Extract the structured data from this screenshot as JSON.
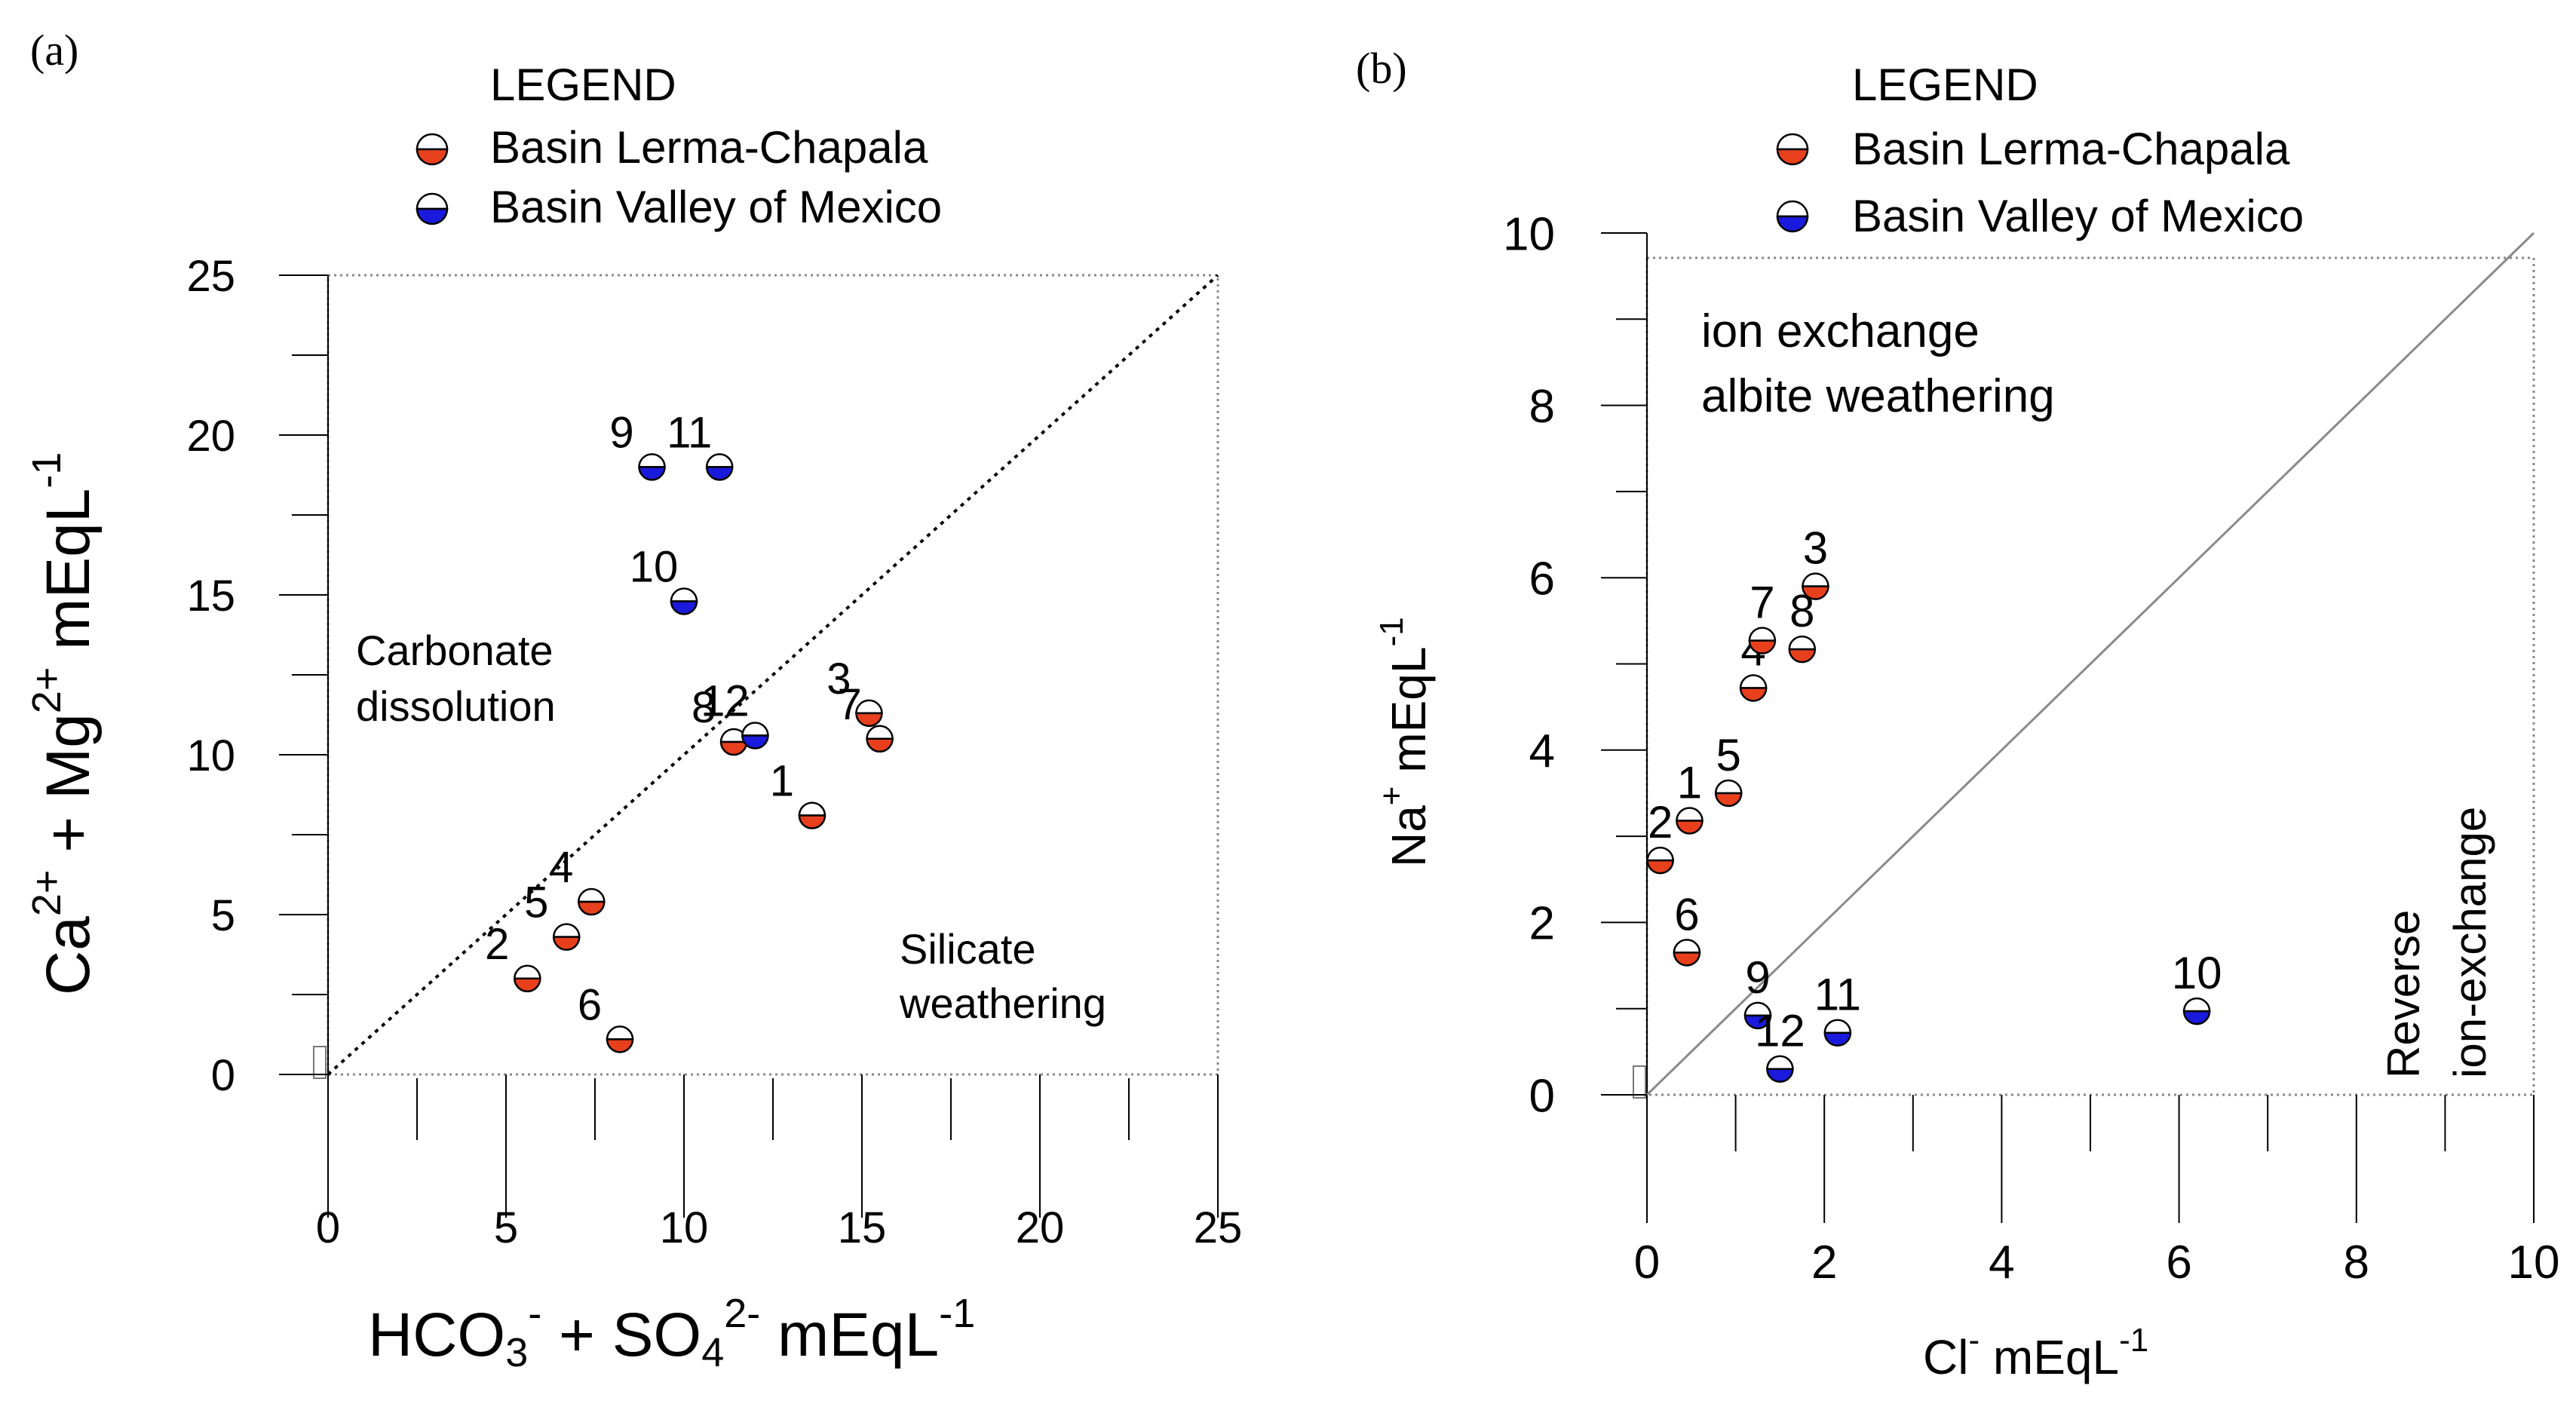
{
  "chart_data": [
    {
      "type": "scatter",
      "panel_label": "(a)",
      "legend": {
        "title": "LEGEND",
        "entries": [
          "Basin Lerma-Chapala",
          "Basin Valley of Mexico"
        ]
      },
      "series_colors": {
        "lerma": "#e8401c",
        "mexico": "#1a1adc"
      },
      "xlim": [
        0,
        25
      ],
      "ylim": [
        0,
        25
      ],
      "x_ticks": [
        0,
        5,
        10,
        15,
        20,
        25
      ],
      "y_ticks": [
        0,
        5,
        10,
        15,
        20,
        25
      ],
      "x_tick_labels": [
        "0",
        "5",
        "10",
        "15",
        "20",
        "25"
      ],
      "y_tick_labels": [
        "0",
        "5",
        "10",
        "15",
        "20",
        "25"
      ],
      "xlabel": {
        "p1": "HCO",
        "p2": "3",
        "p3": "-",
        "p4": " + SO",
        "p5": "4",
        "p6": "2-",
        "p7": "  mEqL",
        "p8": "-1"
      },
      "ylabel": {
        "p1": "Ca",
        "p2": "2+",
        "p3": " + Mg",
        "p4": "2+",
        "p5": "  mEqL",
        "p6": "-1"
      },
      "reference_line": "1:1 dotted",
      "annotations": [
        {
          "lines": [
            "Carbonate",
            "dissolution"
          ],
          "where": "upper-left"
        },
        {
          "lines": [
            "Silicate",
            "weathering"
          ],
          "where": "lower-right"
        }
      ],
      "points": [
        {
          "label": "1",
          "series": "lerma",
          "x": 13.6,
          "y": 8.1
        },
        {
          "label": "2",
          "series": "lerma",
          "x": 5.6,
          "y": 3.0
        },
        {
          "label": "3",
          "series": "lerma",
          "x": 15.2,
          "y": 11.3
        },
        {
          "label": "4",
          "series": "lerma",
          "x": 7.4,
          "y": 5.4
        },
        {
          "label": "5",
          "series": "lerma",
          "x": 6.7,
          "y": 4.3
        },
        {
          "label": "6",
          "series": "lerma",
          "x": 8.2,
          "y": 1.1
        },
        {
          "label": "7",
          "series": "lerma",
          "x": 15.5,
          "y": 10.5
        },
        {
          "label": "8",
          "series": "lerma",
          "x": 11.4,
          "y": 10.4
        },
        {
          "label": "9",
          "series": "mexico",
          "x": 9.1,
          "y": 19.0
        },
        {
          "label": "10",
          "series": "mexico",
          "x": 10.0,
          "y": 14.8
        },
        {
          "label": "11",
          "series": "mexico",
          "x": 11.0,
          "y": 19.0
        },
        {
          "label": "12",
          "series": "mexico",
          "x": 12.0,
          "y": 10.6
        }
      ]
    },
    {
      "type": "scatter",
      "panel_label": "(b)",
      "legend": {
        "title": "LEGEND",
        "entries": [
          "Basin Lerma-Chapala",
          "Basin Valley of Mexico"
        ]
      },
      "series_colors": {
        "lerma": "#e8401c",
        "mexico": "#1a1adc"
      },
      "xlim": [
        0,
        10
      ],
      "ylim": [
        0,
        10
      ],
      "x_ticks": [
        0,
        2,
        4,
        6,
        8,
        10
      ],
      "y_ticks": [
        0,
        2,
        4,
        6,
        8,
        10
      ],
      "x_tick_labels": [
        "0",
        "2",
        "4",
        "6",
        "8",
        "10"
      ],
      "y_tick_labels": [
        "0",
        "2",
        "4",
        "6",
        "8",
        "10"
      ],
      "xlabel": {
        "p1": "Cl",
        "p2": "-",
        "p3": "  mEqL",
        "p4": "-1"
      },
      "ylabel": {
        "p1": "Na",
        "p2": "+",
        "p3": " mEqL",
        "p4": "-1"
      },
      "reference_line": "1:1 solid",
      "annotations": [
        {
          "lines": [
            "ion exchange",
            "albite weathering"
          ],
          "where": "upper-left"
        },
        {
          "lines": [
            "Reverse",
            "ion-exchange"
          ],
          "where": "lower-right, rotated"
        }
      ],
      "points": [
        {
          "label": "1",
          "series": "lerma",
          "x": 0.48,
          "y": 3.18
        },
        {
          "label": "2",
          "series": "lerma",
          "x": 0.15,
          "y": 2.72
        },
        {
          "label": "3",
          "series": "lerma",
          "x": 1.9,
          "y": 5.9
        },
        {
          "label": "4",
          "series": "lerma",
          "x": 1.2,
          "y": 4.72
        },
        {
          "label": "5",
          "series": "lerma",
          "x": 0.92,
          "y": 3.5
        },
        {
          "label": "6",
          "series": "lerma",
          "x": 0.45,
          "y": 1.65
        },
        {
          "label": "7",
          "series": "lerma",
          "x": 1.3,
          "y": 5.27
        },
        {
          "label": "8",
          "series": "lerma",
          "x": 1.75,
          "y": 5.17
        },
        {
          "label": "9",
          "series": "mexico",
          "x": 1.25,
          "y": 0.92
        },
        {
          "label": "10",
          "series": "mexico",
          "x": 6.2,
          "y": 0.97
        },
        {
          "label": "11",
          "series": "mexico",
          "x": 2.15,
          "y": 0.72
        },
        {
          "label": "12",
          "series": "mexico",
          "x": 1.5,
          "y": 0.3
        }
      ]
    }
  ]
}
